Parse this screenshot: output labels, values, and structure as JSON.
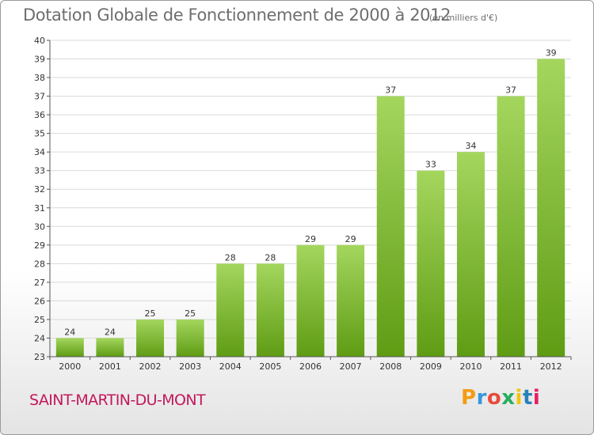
{
  "header": {
    "title": "Dotation Globale de Fonctionnement de 2000 à 2012",
    "unit": "(en milliers d'€)"
  },
  "footer": {
    "commune": "SAINT-MARTIN-DU-MONT",
    "logo_letters": [
      "P",
      "r",
      "o",
      "x",
      "i",
      "t",
      "i"
    ],
    "logo_colors": [
      "#f39c12",
      "#3498db",
      "#e74c3c",
      "#27ae60",
      "#f1c40f",
      "#2980b9",
      "#e91e63"
    ]
  },
  "colors": {
    "bar_top": "#a4d65e",
    "bar_bottom": "#5f9c14",
    "grid": "#d9d9d9",
    "axis": "#555555",
    "label": "#333333",
    "commune": "#c2185b"
  },
  "chart_data": {
    "type": "bar",
    "categories": [
      "2000",
      "2001",
      "2002",
      "2003",
      "2004",
      "2005",
      "2006",
      "2007",
      "2008",
      "2009",
      "2010",
      "2011",
      "2012"
    ],
    "values": [
      24,
      24,
      25,
      25,
      28,
      28,
      29,
      29,
      37,
      33,
      34,
      37,
      39
    ],
    "title": "Dotation Globale de Fonctionnement de 2000 à 2012",
    "subtitle": "(en milliers d'€)",
    "xlabel": "",
    "ylabel": "",
    "ylim": [
      23,
      40
    ],
    "yticks": [
      23,
      24,
      25,
      26,
      27,
      28,
      29,
      30,
      31,
      32,
      33,
      34,
      35,
      36,
      37,
      38,
      39,
      40
    ],
    "grid": true,
    "data_labels": true
  }
}
